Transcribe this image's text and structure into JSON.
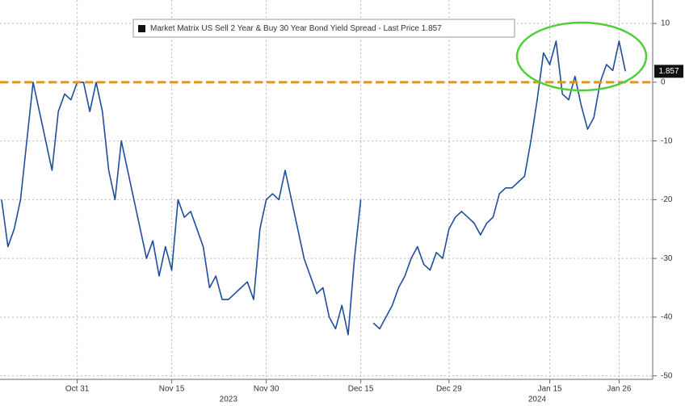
{
  "chart_data": {
    "type": "line",
    "title": "Market Matrix US Sell 2 Year & Buy 30 Year Bond Yield Spread - Last Price 1.857",
    "last_price": 1.857,
    "reference_line": 0,
    "years": [
      "2023",
      "2024"
    ],
    "categories": [
      null,
      null,
      null,
      null,
      null,
      null,
      null,
      null,
      null,
      null,
      null,
      null,
      "Oct 31",
      null,
      null,
      null,
      null,
      null,
      null,
      null,
      null,
      null,
      null,
      null,
      null,
      null,
      null,
      "Nov 15",
      null,
      null,
      null,
      null,
      null,
      null,
      null,
      null,
      null,
      null,
      null,
      null,
      null,
      null,
      "Nov 30",
      null,
      null,
      null,
      null,
      null,
      null,
      null,
      null,
      null,
      null,
      null,
      null,
      null,
      null,
      "Dec 15",
      null,
      null,
      null,
      null,
      null,
      null,
      null,
      null,
      null,
      null,
      null,
      null,
      null,
      "Dec 29",
      null,
      null,
      null,
      null,
      null,
      null,
      null,
      null,
      null,
      null,
      null,
      null,
      null,
      null,
      null,
      "Jan 15",
      null,
      null,
      null,
      null,
      null,
      null,
      null,
      null,
      null,
      null,
      "Jan 26",
      null
    ],
    "series": [
      {
        "name": "Market Matrix US Sell 2 Year & Buy 30 Year Bond Yield Spread",
        "color": "#1f4e9c",
        "values": [
          -20,
          -28,
          -25,
          -20,
          -10,
          0,
          -5,
          -10,
          -15,
          -5,
          -2,
          -3,
          0,
          0,
          -5,
          0,
          -5,
          -15,
          -20,
          -10,
          -15,
          -20,
          -25,
          -30,
          -27,
          -33,
          -28,
          -32,
          -20,
          -23,
          -22,
          -25,
          -28,
          -35,
          -33,
          -37,
          -37,
          -36,
          -35,
          -34,
          -37,
          -25,
          -20,
          -19,
          -20,
          -15,
          -20,
          -25,
          -30,
          -33,
          -36,
          -35,
          -40,
          -42,
          -38,
          -43,
          -30,
          -20,
          null,
          -41,
          -42,
          -40,
          -38,
          -35,
          -33,
          -30,
          -28,
          -31,
          -32,
          -29,
          -30,
          -25,
          -23,
          -22,
          -23,
          -24,
          -26,
          -24,
          -23,
          -19,
          -18,
          -18,
          -17,
          -16,
          -10,
          -3,
          5,
          3,
          7,
          -2,
          -3,
          1,
          -4,
          -8,
          -6,
          0,
          3,
          2,
          7,
          1.857
        ]
      }
    ],
    "ylim": [
      -50.6,
      14.0
    ],
    "yticks": [
      10,
      0,
      -10,
      -20,
      -30,
      -40,
      -50
    ],
    "grid": true,
    "reference_color": "#e8921e"
  }
}
